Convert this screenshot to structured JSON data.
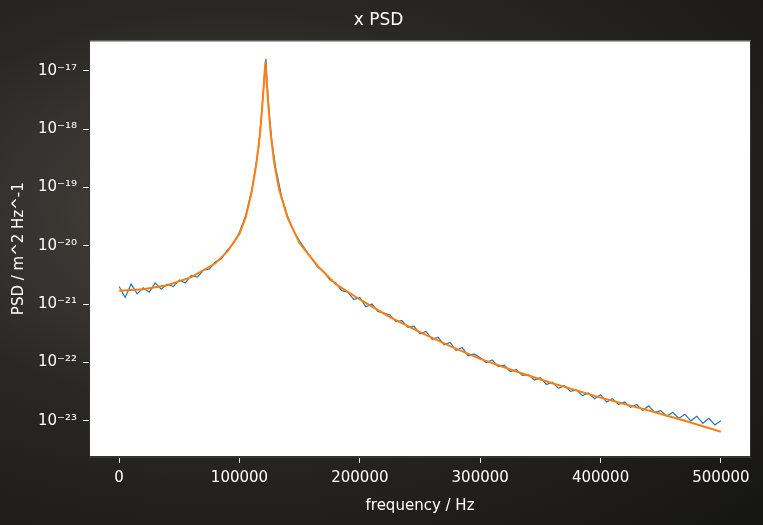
{
  "chart_data": {
    "type": "line",
    "title": "x PSD",
    "x_label": "frequency / Hz",
    "y_label": "PSD / m^2 Hz^-1",
    "log": "y",
    "grid": false,
    "xlim": [
      -25000,
      525000
    ],
    "xticks": [
      0,
      100000,
      200000,
      300000,
      400000,
      500000
    ],
    "ylim": [
      2.4e-24,
      3.3e-17
    ],
    "yticks": [
      {
        "value": 1e-23,
        "label": "10⁻²³"
      },
      {
        "value": 1e-22,
        "label": "10⁻²²"
      },
      {
        "value": 1e-21,
        "label": "10⁻²¹"
      },
      {
        "value": 1e-20,
        "label": "10⁻²⁰"
      },
      {
        "value": 1e-19,
        "label": "10⁻¹⁹"
      },
      {
        "value": 1e-18,
        "label": "10⁻¹⁸"
      },
      {
        "value": 1e-17,
        "label": "10⁻¹⁷"
      }
    ],
    "series": [
      {
        "color": "#1f77b4",
        "x": [
          0,
          5000,
          10000,
          15000,
          20000,
          25000,
          30000,
          35000,
          40000,
          45000,
          50000,
          55000,
          60000,
          65000,
          70000,
          75000,
          80000,
          85000,
          90000,
          95000,
          100000,
          105000,
          110000,
          113000,
          116000,
          118000,
          120000,
          121000,
          122000,
          123000,
          125000,
          127000,
          130000,
          135000,
          140000,
          145000,
          150000,
          155000,
          160000,
          165000,
          170000,
          175000,
          180000,
          185000,
          190000,
          195000,
          200000,
          205000,
          210000,
          215000,
          220000,
          225000,
          230000,
          235000,
          240000,
          245000,
          250000,
          255000,
          260000,
          265000,
          270000,
          275000,
          280000,
          285000,
          290000,
          295000,
          300000,
          305000,
          310000,
          315000,
          320000,
          325000,
          330000,
          335000,
          340000,
          345000,
          350000,
          355000,
          360000,
          365000,
          370000,
          375000,
          380000,
          385000,
          390000,
          395000,
          400000,
          405000,
          410000,
          415000,
          420000,
          425000,
          430000,
          435000,
          440000,
          445000,
          450000,
          455000,
          460000,
          465000,
          470000,
          475000,
          480000,
          485000,
          490000,
          495000,
          500000
        ],
        "values": [
          2e-21,
          1.3e-21,
          2.2e-21,
          1.5e-21,
          1.9e-21,
          1.6e-21,
          2.3e-21,
          1.8e-21,
          2.2e-21,
          2e-21,
          2.6e-21,
          2.3e-21,
          3.1e-21,
          2.9e-21,
          3.8e-21,
          4e-21,
          5.3e-21,
          6e-21,
          8.5e-21,
          1.1e-20,
          1.7e-20,
          3.2e-20,
          8.5e-20,
          2e-19,
          5e-19,
          1.5e-18,
          5e-18,
          1e-17,
          1.6e-17,
          6e-18,
          1.6e-18,
          6e-19,
          2.2e-19,
          7e-20,
          3.2e-20,
          1.8e-20,
          1.2e-20,
          8.5e-21,
          6e-21,
          4.3e-21,
          3.6e-21,
          2.6e-21,
          2.3e-21,
          1.7e-21,
          1.6e-21,
          1.2e-21,
          1.3e-21,
          9e-22,
          1e-21,
          7.5e-22,
          7e-22,
          6.5e-22,
          5e-22,
          5.2e-22,
          4e-22,
          4.2e-22,
          3.1e-22,
          3.4e-22,
          2.5e-22,
          2.7e-22,
          2e-22,
          2.2e-22,
          1.6e-22,
          1.8e-22,
          1.3e-22,
          1.4e-22,
          1.2e-22,
          1e-22,
          1.1e-22,
          8.5e-23,
          9e-23,
          7e-23,
          7.5e-23,
          6e-23,
          6.2e-23,
          5e-23,
          5.5e-23,
          4.2e-23,
          4.6e-23,
          3.6e-23,
          4e-23,
          3.2e-23,
          3.4e-23,
          2.7e-23,
          3e-23,
          2.4e-23,
          2.8e-23,
          2.1e-23,
          2.4e-23,
          1.9e-23,
          2.1e-23,
          1.7e-23,
          1.9e-23,
          1.5e-23,
          1.8e-23,
          1.4e-23,
          1.5e-23,
          1.2e-23,
          1.4e-23,
          1.1e-23,
          1.3e-23,
          1e-23,
          1.2e-23,
          9e-24,
          1.1e-23,
          8.5e-24,
          1e-23
        ]
      },
      {
        "color": "#ff7f0e",
        "x": [
          0,
          20000,
          40000,
          60000,
          80000,
          90000,
          100000,
          105000,
          110000,
          114000,
          117000,
          119000,
          120500,
          121500,
          122500,
          124000,
          126000,
          129000,
          133000,
          140000,
          150000,
          165000,
          180000,
          200000,
          225000,
          250000,
          275000,
          300000,
          330000,
          360000,
          400000,
          440000,
          470000,
          500000
        ],
        "values": [
          1.7e-21,
          1.8e-21,
          2.1e-21,
          2.9e-21,
          5e-21,
          8e-21,
          1.6e-20,
          3e-20,
          8e-20,
          2.5e-19,
          8e-19,
          2.5e-18,
          7e-18,
          1.4e-17,
          7e-18,
          2.5e-18,
          8e-19,
          2.5e-19,
          9e-20,
          3e-20,
          1.1e-20,
          4.5e-21,
          2.2e-21,
          1.2e-21,
          6e-22,
          3.3e-22,
          1.9e-22,
          1.15e-22,
          7e-23,
          4.4e-23,
          2.5e-23,
          1.5e-23,
          1e-23,
          6.5e-24
        ]
      }
    ]
  }
}
